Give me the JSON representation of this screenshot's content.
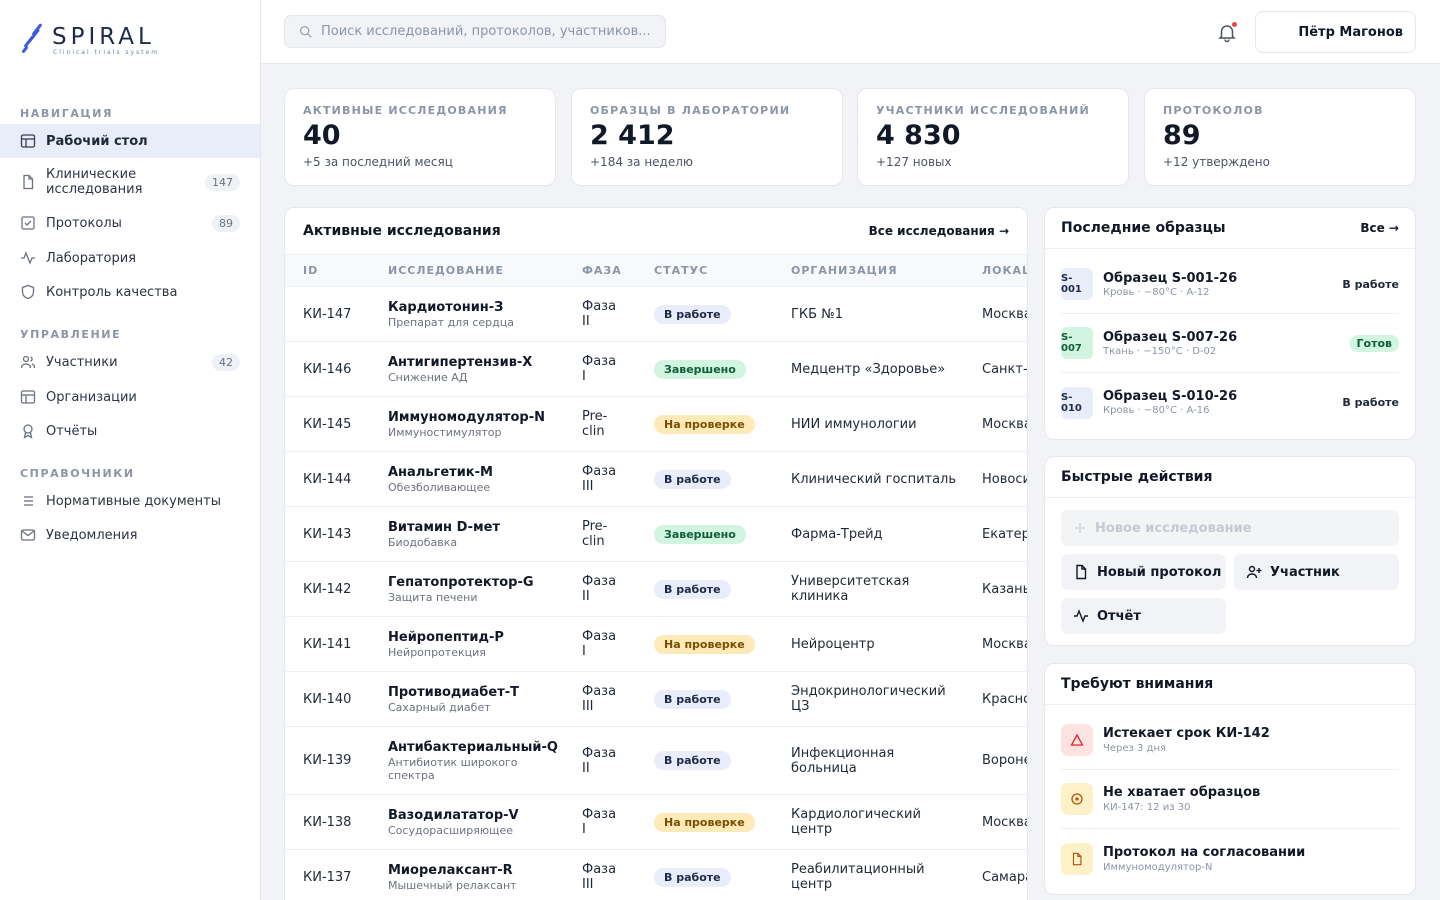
{
  "brand": {
    "name": "SPIRAL",
    "tagline": "Clinical trials system"
  },
  "search": {
    "placeholder": "Поиск исследований, протоколов, участников..."
  },
  "user": {
    "name": "Пётр Магонов"
  },
  "sidebar": {
    "sections": [
      {
        "title": "НАВИГАЦИЯ"
      },
      {
        "title": "УПРАВЛЕНИЕ"
      },
      {
        "title": "СПРАВОЧНИКИ"
      }
    ],
    "items": [
      {
        "label": "Рабочий стол",
        "icon": "dashboard-icon",
        "active": true
      },
      {
        "label": "Клинические исследования",
        "icon": "file-icon",
        "badge": "147"
      },
      {
        "label": "Протоколы",
        "icon": "checkbox-icon",
        "badge": "89"
      },
      {
        "label": "Лаборатория",
        "icon": "activity-icon"
      },
      {
        "label": "Контроль качества",
        "icon": "shield-icon"
      },
      {
        "label": "Участники",
        "icon": "users-icon",
        "badge": "42"
      },
      {
        "label": "Организации",
        "icon": "layout-icon"
      },
      {
        "label": "Отчёты",
        "icon": "award-icon"
      },
      {
        "label": "Нормативные документы",
        "icon": "list-icon"
      },
      {
        "label": "Уведомления",
        "icon": "mail-icon"
      }
    ]
  },
  "stats": [
    {
      "label": "АКТИВНЫЕ ИССЛЕДОВАНИЯ",
      "value": "40",
      "sub": "+5 за последний месяц"
    },
    {
      "label": "ОБРАЗЦЫ В ЛАБОРАТОРИИ",
      "value": "2 412",
      "sub": "+184 за неделю"
    },
    {
      "label": "УЧАСТНИКИ ИССЛЕДОВАНИЙ",
      "value": "4 830",
      "sub": "+127 новых"
    },
    {
      "label": "ПРОТОКОЛОВ",
      "value": "89",
      "sub": "+12 утверждено"
    }
  ],
  "studies": {
    "title": "Активные исследования",
    "link": "Все исследования →",
    "columns": [
      "ID",
      "ИССЛЕДОВАНИЕ",
      "ФАЗА",
      "СТАТУС",
      "ОРГАНИЗАЦИЯ",
      "ЛОКАЦИЯ"
    ],
    "rows": [
      {
        "id": "КИ-147",
        "name": "Кардиотонин-З",
        "sub": "Препарат для сердца",
        "phase": "Фаза II",
        "status": "В работе",
        "org": "ГКБ №1",
        "loc": "Москва"
      },
      {
        "id": "КИ-146",
        "name": "Антигипертензив-Х",
        "sub": "Снижение АД",
        "phase": "Фаза I",
        "status": "Завершено",
        "org": "Медцентр «Здоровье»",
        "loc": "Санкт-Петербург"
      },
      {
        "id": "КИ-145",
        "name": "Иммуномодулятор-N",
        "sub": "Иммуностимулятор",
        "phase": "Pre-clin",
        "status": "На проверке",
        "org": "НИИ иммунологии",
        "loc": "Москва"
      },
      {
        "id": "КИ-144",
        "name": "Анальгетик-М",
        "sub": "Обезболивающее",
        "phase": "Фаза III",
        "status": "В работе",
        "org": "Клинический госпиталь",
        "loc": "Новосибирск"
      },
      {
        "id": "КИ-143",
        "name": "Витамин D-мет",
        "sub": "Биодобавка",
        "phase": "Pre-clin",
        "status": "Завершено",
        "org": "Фарма-Трейд",
        "loc": "Екатеринбург"
      },
      {
        "id": "КИ-142",
        "name": "Гепатопротектор-G",
        "sub": "Защита печени",
        "phase": "Фаза II",
        "status": "В работе",
        "org": "Университетская клиника",
        "loc": "Казань"
      },
      {
        "id": "КИ-141",
        "name": "Нейропептид-Р",
        "sub": "Нейропротекция",
        "phase": "Фаза I",
        "status": "На проверке",
        "org": "Нейроцентр",
        "loc": "Москва"
      },
      {
        "id": "КИ-140",
        "name": "Противодиабет-Т",
        "sub": "Сахарный диабет",
        "phase": "Фаза III",
        "status": "В работе",
        "org": "Эндокринологический ЦЗ",
        "loc": "Красноярск"
      },
      {
        "id": "КИ-139",
        "name": "Антибактериальный-Q",
        "sub": "Антибиотик широкого спектра",
        "phase": "Фаза II",
        "status": "В работе",
        "org": "Инфекционная больница",
        "loc": "Воронеж"
      },
      {
        "id": "КИ-138",
        "name": "Вазодилататор-V",
        "sub": "Сосудорасширяющее",
        "phase": "Фаза I",
        "status": "На проверке",
        "org": "Кардиологический центр",
        "loc": "Москва"
      },
      {
        "id": "КИ-137",
        "name": "Миорелаксант-R",
        "sub": "Мышечный релаксант",
        "phase": "Фаза III",
        "status": "В работе",
        "org": "Реабилитационный центр",
        "loc": "Самара"
      }
    ]
  },
  "samples": {
    "title": "Последние образцы",
    "link": "Все →",
    "items": [
      {
        "code": "S-001",
        "title": "Образец S-001-26",
        "meta": "Кровь · −80°C · A-12",
        "status": "В работе"
      },
      {
        "code": "S-007",
        "title": "Образец S-007-26",
        "meta": "Ткань · −150°C · D-02",
        "status": "Готов"
      },
      {
        "code": "S-010",
        "title": "Образец S-010-26",
        "meta": "Кровь · −80°C · A-16",
        "status": "В работе"
      }
    ]
  },
  "quick_actions": {
    "title": "Быстрые действия",
    "new_study": "Новое исследование",
    "new_protocol": "Новый протокол",
    "participant": "Участник",
    "report": "Отчёт"
  },
  "attention": {
    "title": "Требуют внимания",
    "items": [
      {
        "title": "Истекает срок КИ-142",
        "sub": "Через 3 дня",
        "icon": "alert-triangle-icon",
        "color": "#fde2e2"
      },
      {
        "title": "Не хватает образцов",
        "sub": "КИ-147: 12 из 30",
        "icon": "clock-icon",
        "color": "#fdf1c7"
      },
      {
        "title": "Протокол на согласовании",
        "sub": "Иммуномодулятор-N",
        "icon": "document-icon",
        "color": "#fdf1c7"
      }
    ]
  },
  "colors": {
    "accent": "#3b5bdb",
    "active_bg": "#e8edf9",
    "success": "#d1f5e0",
    "warning": "#fdeab8",
    "danger": "#ef4444"
  }
}
